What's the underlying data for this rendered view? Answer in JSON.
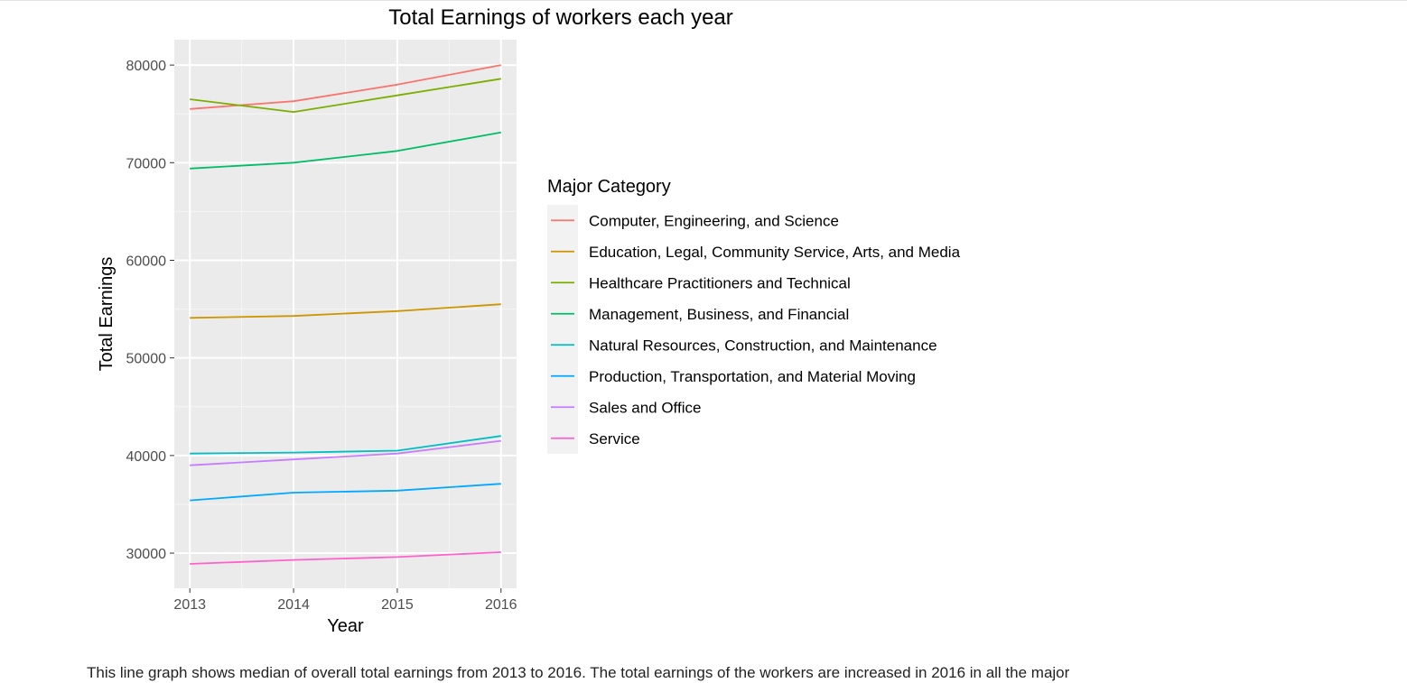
{
  "chart_data": {
    "type": "line",
    "title": "Total Earnings of workers each year",
    "xlabel": "Year",
    "ylabel": "Total Earnings",
    "x": [
      2013,
      2014,
      2015,
      2016
    ],
    "x_ticks": [
      "2013",
      "2014",
      "2015",
      "2016"
    ],
    "xlim": [
      2012.85,
      2016.15
    ],
    "ylim": [
      26400,
      82600
    ],
    "y_ticks": [
      30000,
      40000,
      50000,
      60000,
      70000,
      80000
    ],
    "y_tick_labels": [
      "30000",
      "40000",
      "50000",
      "60000",
      "70000",
      "80000"
    ],
    "grid": true,
    "legend_title": "Major Category",
    "legend_position": "right",
    "series": [
      {
        "name": "Computer, Engineering, and Science",
        "color": "#F8766D",
        "values": [
          75500,
          76300,
          78000,
          80000
        ]
      },
      {
        "name": "Education, Legal, Community Service, Arts, and Media",
        "color": "#CD9600",
        "values": [
          54100,
          54300,
          54800,
          55500
        ]
      },
      {
        "name": "Healthcare Practitioners and Technical",
        "color": "#7CAE00",
        "values": [
          76500,
          75200,
          76900,
          78600
        ]
      },
      {
        "name": "Management, Business, and Financial",
        "color": "#00BE67",
        "values": [
          69400,
          70000,
          71200,
          73100
        ]
      },
      {
        "name": "Natural Resources, Construction, and Maintenance",
        "color": "#00BFC4",
        "values": [
          40200,
          40300,
          40500,
          42000
        ]
      },
      {
        "name": "Production, Transportation, and Material Moving",
        "color": "#00A9FF",
        "values": [
          35400,
          36200,
          36400,
          37100
        ]
      },
      {
        "name": "Sales and Office",
        "color": "#C77CFF",
        "values": [
          39000,
          39600,
          40200,
          41500
        ]
      },
      {
        "name": "Service",
        "color": "#FF61CC",
        "values": [
          28900,
          29300,
          29600,
          30100
        ]
      }
    ]
  },
  "caption": {
    "text": "This line graph shows median of overall total earnings from 2013 to 2016. The total earnings of the workers are increased in 2016 in all the major"
  }
}
